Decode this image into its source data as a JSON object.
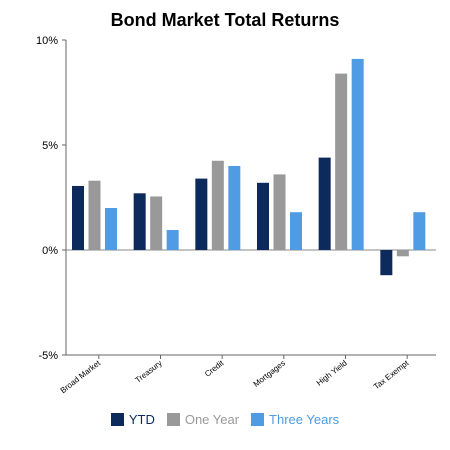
{
  "chart_data": {
    "type": "bar",
    "title": "Bond Market Total Returns",
    "categories": [
      "Broad Market",
      "Treasury",
      "Credit",
      "Mortgages",
      "High Yield",
      "Tax Exempt"
    ],
    "series": [
      {
        "name": "YTD",
        "color": "#0d2a5c",
        "values": [
          3.05,
          2.7,
          3.4,
          3.2,
          4.4,
          -1.2
        ]
      },
      {
        "name": "One Year",
        "color": "#999999",
        "values": [
          3.3,
          2.55,
          4.25,
          3.6,
          8.4,
          -0.3
        ]
      },
      {
        "name": "Three Years",
        "color": "#4f9be4",
        "values": [
          2.0,
          0.95,
          4.0,
          1.8,
          9.1,
          1.8
        ]
      }
    ],
    "ylim": [
      -5,
      10
    ],
    "yticks": [
      10,
      5,
      0,
      -5
    ],
    "ytick_labels": [
      "10%",
      "5%",
      "0%",
      "-5%"
    ],
    "xlabel": "",
    "ylabel": "",
    "grid": false,
    "legend_position": "bottom"
  }
}
